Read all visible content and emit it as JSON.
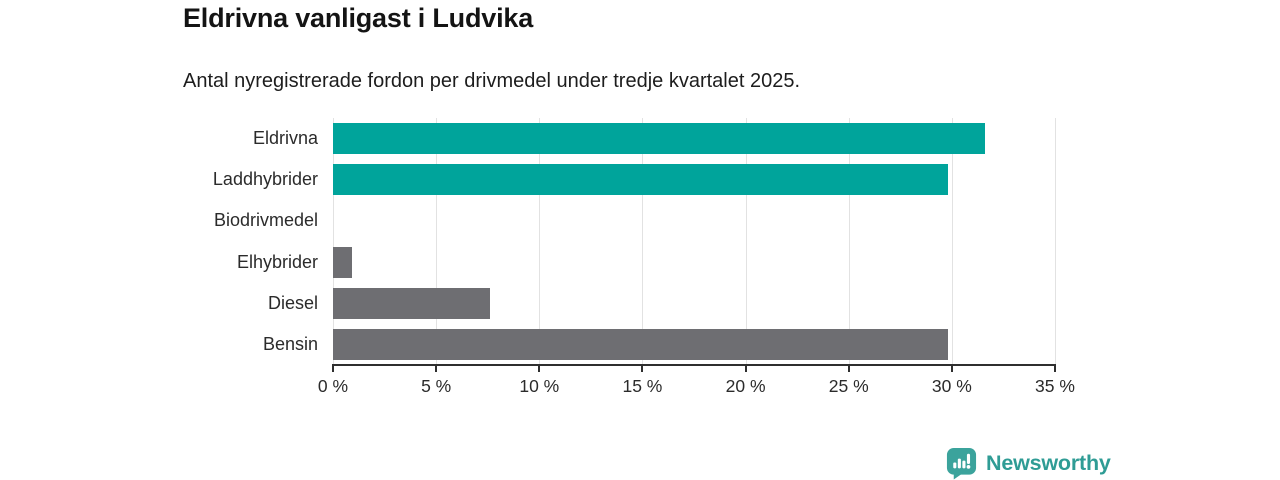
{
  "header": {
    "title": "Eldrivna vanligast i Ludvika",
    "subtitle": "Antal nyregistrerade fordon per drivmedel under tredje kvartalet 2025."
  },
  "chart_data": {
    "type": "bar",
    "orientation": "horizontal",
    "title": "Eldrivna vanligast i Ludvika",
    "subtitle": "Antal nyregistrerade fordon per drivmedel under tredje kvartalet 2025.",
    "categories": [
      "Eldrivna",
      "Laddhybrider",
      "Biodrivmedel",
      "Elhybrider",
      "Diesel",
      "Bensin"
    ],
    "values": [
      31.6,
      29.8,
      0,
      0.9,
      7.6,
      29.8
    ],
    "unit": "%",
    "xlim": [
      0,
      35
    ],
    "x_ticks": [
      0,
      5,
      10,
      15,
      20,
      25,
      30,
      35
    ],
    "x_tick_labels": [
      "0 %",
      "5 %",
      "10 %",
      "15 %",
      "20 %",
      "25 %",
      "30 %",
      "35 %"
    ],
    "bar_colors": [
      "#00a49b",
      "#00a49b",
      "#6e6e72",
      "#6e6e72",
      "#6e6e72",
      "#6e6e72"
    ],
    "grid": true,
    "legend": false
  },
  "colors": {
    "highlight_teal": "#00a49b",
    "neutral_gray": "#6e6e72",
    "gridline": "#e2e2e2",
    "axis": "#2f2f2f",
    "logo_teal": "#2f9c95"
  },
  "footer": {
    "brand": "Newsworthy"
  },
  "icons": {
    "logo_icon": "newsworthy-bubble-barchart-icon"
  }
}
